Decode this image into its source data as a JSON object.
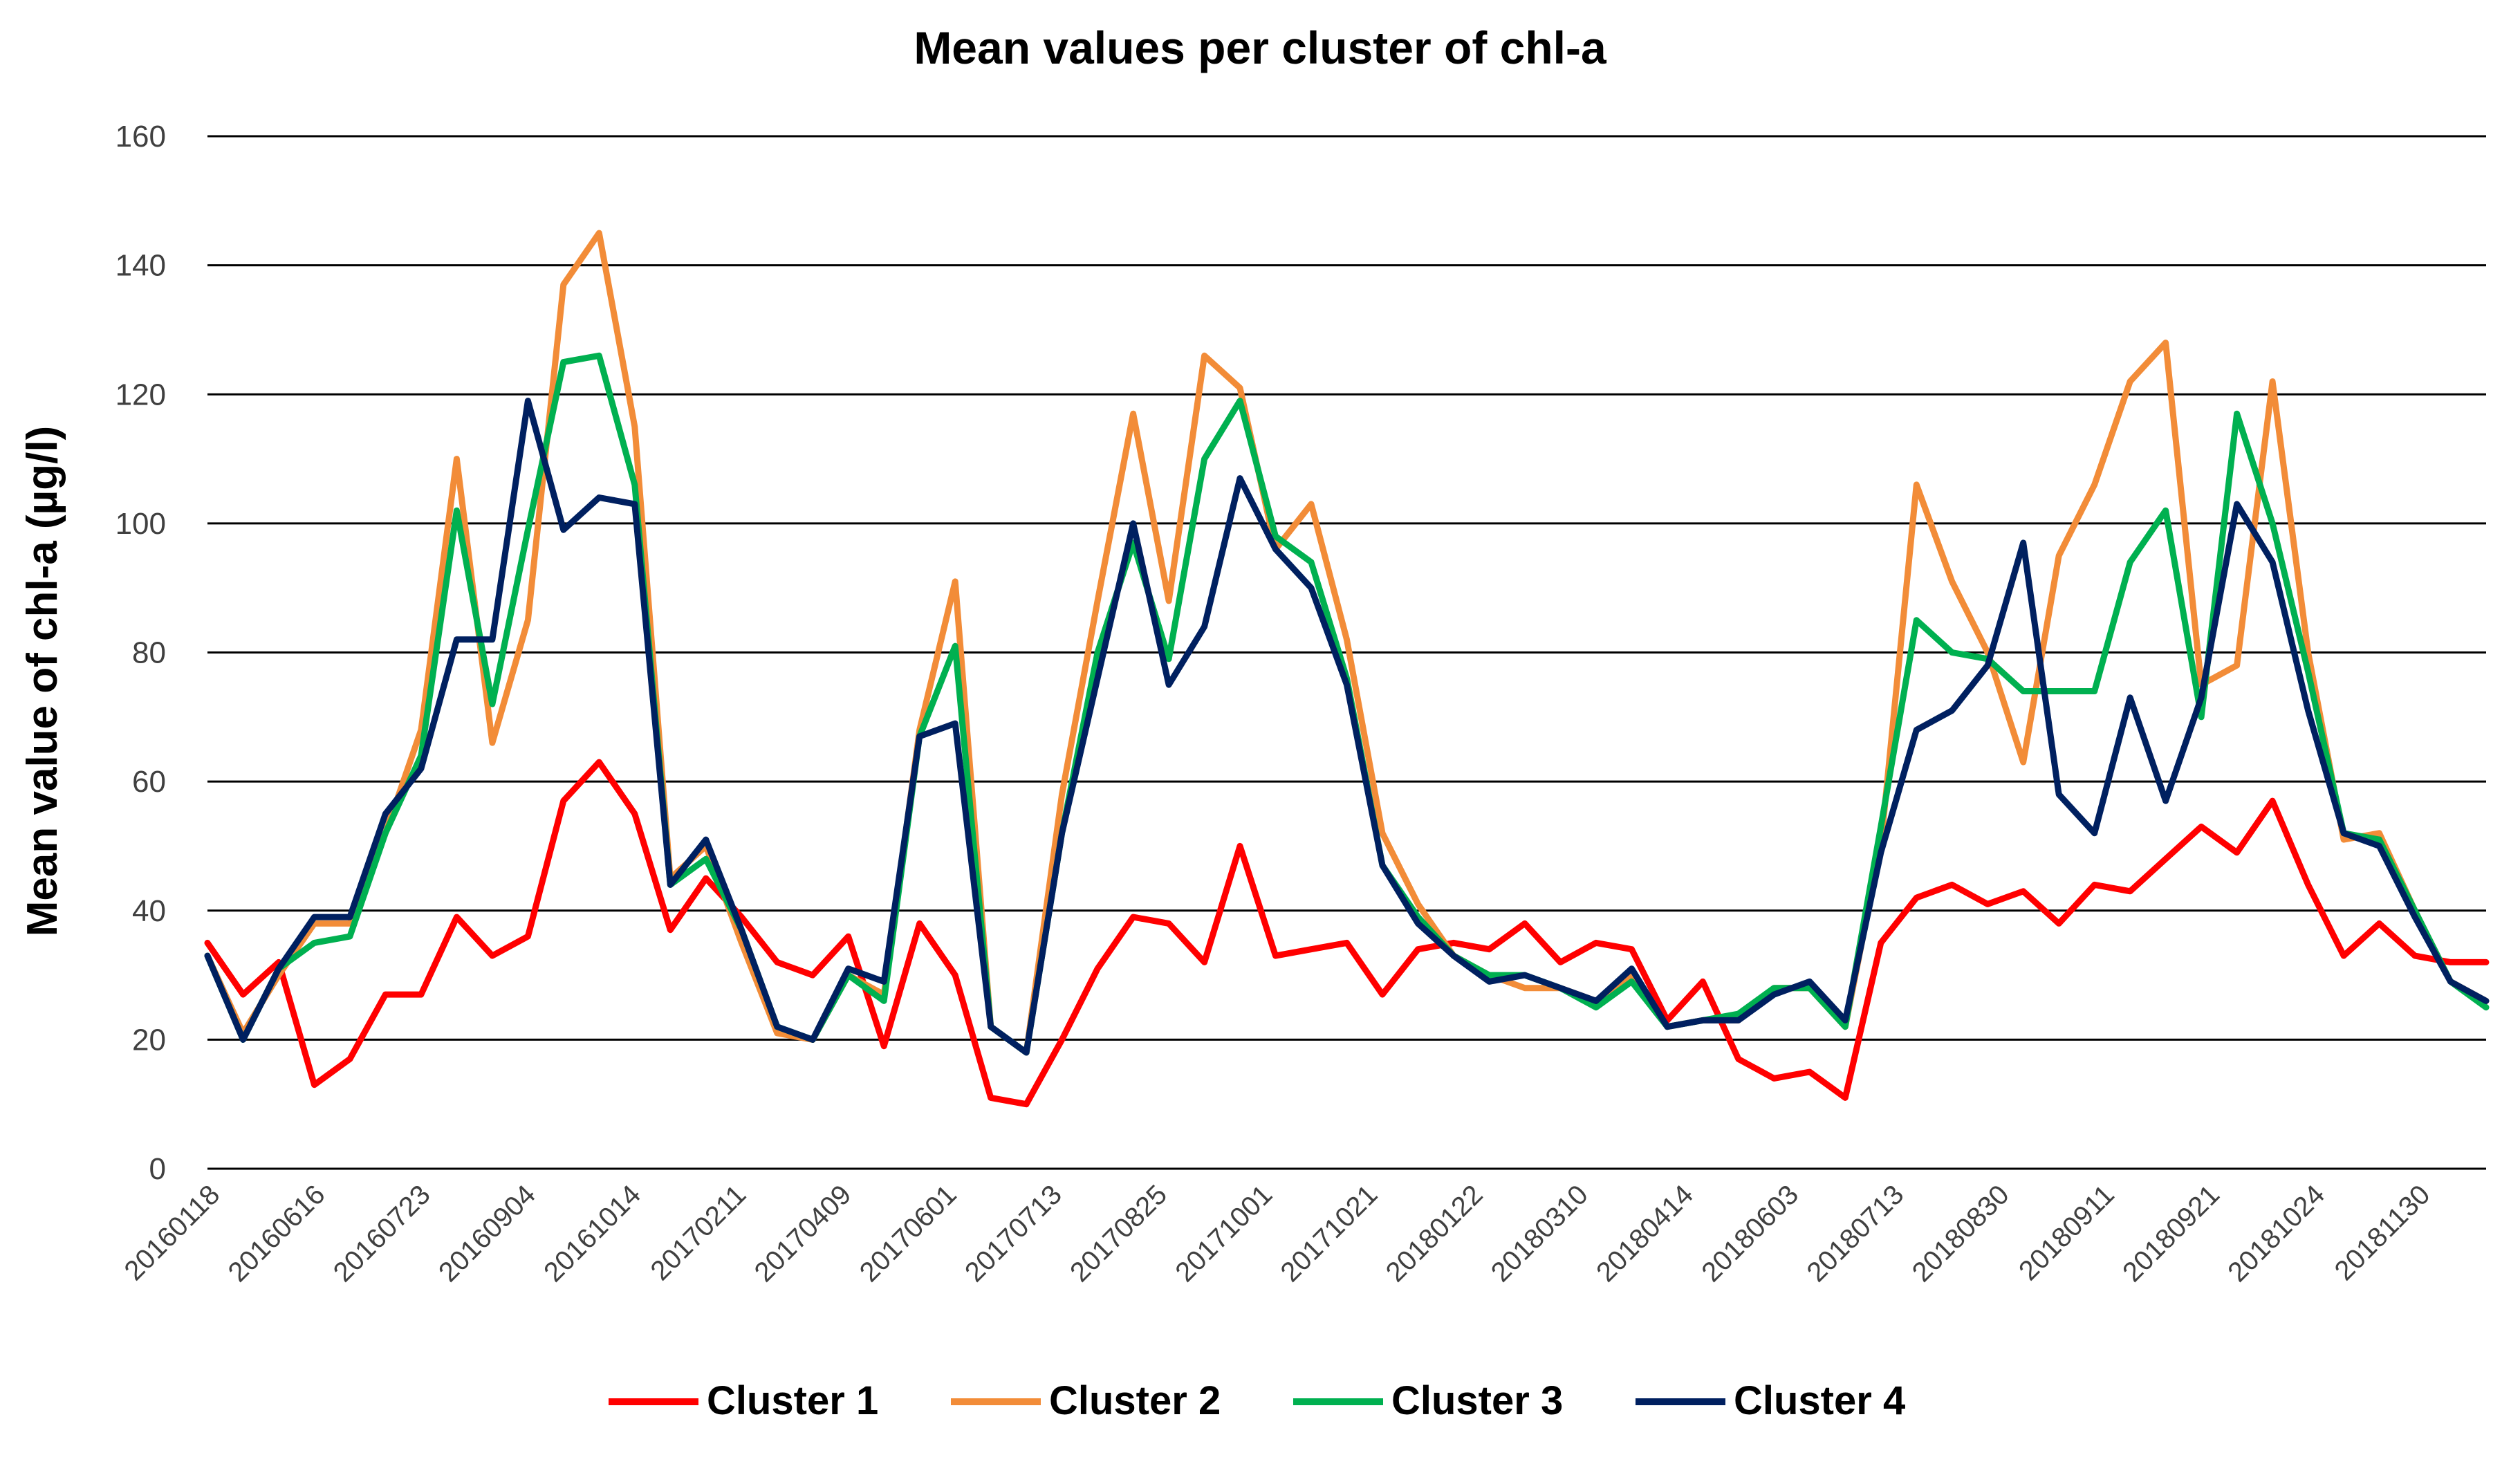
{
  "chart_data": {
    "type": "line",
    "title": "Mean values per cluster of chl-a",
    "xlabel": "",
    "ylabel": "Mean value of chl-a (µg/l)",
    "ylim": [
      0,
      160
    ],
    "yticks": [
      0,
      20,
      40,
      60,
      80,
      100,
      120,
      140,
      160
    ],
    "grid": true,
    "legend_position": "bottom",
    "x_count": 65,
    "xtick_labels": [
      "20160118",
      "20160616",
      "20160723",
      "20160904",
      "20161014",
      "20170211",
      "20170409",
      "20170601",
      "20170713",
      "20170825",
      "20171001",
      "20171021",
      "20180122",
      "20180310",
      "20180414",
      "20180603",
      "20180713",
      "20180830",
      "20180911",
      "20180921",
      "20181024",
      "20181130"
    ],
    "series": [
      {
        "name": "Cluster 1",
        "color": "#ff0000",
        "values": [
          35,
          27,
          32,
          13,
          17,
          27,
          27,
          39,
          33,
          36,
          57,
          63,
          55,
          37,
          45,
          39,
          32,
          30,
          36,
          19,
          38,
          30,
          11,
          10,
          20,
          31,
          39,
          38,
          32,
          50,
          33,
          34,
          35,
          27,
          34,
          35,
          34,
          38,
          32,
          35,
          34,
          23,
          29,
          17,
          14,
          15,
          11,
          35,
          42,
          44,
          41,
          43,
          38,
          44,
          43,
          48,
          53,
          49,
          57,
          44,
          33,
          38,
          33,
          32,
          32
        ]
      },
      {
        "name": "Cluster 2",
        "color": "#f28c38",
        "values": [
          33,
          21,
          30,
          38,
          38,
          52,
          68,
          110,
          66,
          85,
          137,
          145,
          115,
          45,
          50,
          35,
          21,
          20,
          30,
          27,
          68,
          91,
          22,
          18,
          58,
          88,
          117,
          88,
          126,
          121,
          96,
          103,
          82,
          52,
          41,
          33,
          30,
          28,
          28,
          26,
          30,
          22,
          23,
          23,
          28,
          28,
          22,
          50,
          106,
          91,
          80,
          63,
          95,
          106,
          122,
          128,
          75,
          78,
          122,
          80,
          51,
          52,
          40,
          29,
          26
        ]
      },
      {
        "name": "Cluster 3",
        "color": "#00b050",
        "values": [
          33,
          20,
          31,
          35,
          36,
          52,
          64,
          102,
          72,
          99,
          125,
          126,
          106,
          44,
          48,
          37,
          22,
          20,
          30,
          26,
          67,
          81,
          22,
          18,
          52,
          80,
          97,
          79,
          110,
          119,
          98,
          94,
          76,
          47,
          39,
          33,
          30,
          30,
          28,
          25,
          29,
          22,
          23,
          24,
          28,
          28,
          22,
          53,
          85,
          80,
          79,
          74,
          74,
          74,
          94,
          102,
          70,
          117,
          100,
          77,
          52,
          51,
          40,
          29,
          25
        ]
      },
      {
        "name": "Cluster 4",
        "color": "#002060",
        "values": [
          33,
          20,
          31,
          39,
          39,
          55,
          62,
          82,
          82,
          119,
          99,
          104,
          103,
          44,
          51,
          37,
          22,
          20,
          31,
          29,
          67,
          69,
          22,
          18,
          52,
          76,
          100,
          75,
          84,
          107,
          96,
          90,
          75,
          47,
          38,
          33,
          29,
          30,
          28,
          26,
          31,
          22,
          23,
          23,
          27,
          29,
          23,
          49,
          68,
          71,
          78,
          97,
          58,
          52,
          73,
          57,
          73,
          103,
          94,
          71,
          52,
          50,
          39,
          29,
          26
        ]
      }
    ]
  }
}
